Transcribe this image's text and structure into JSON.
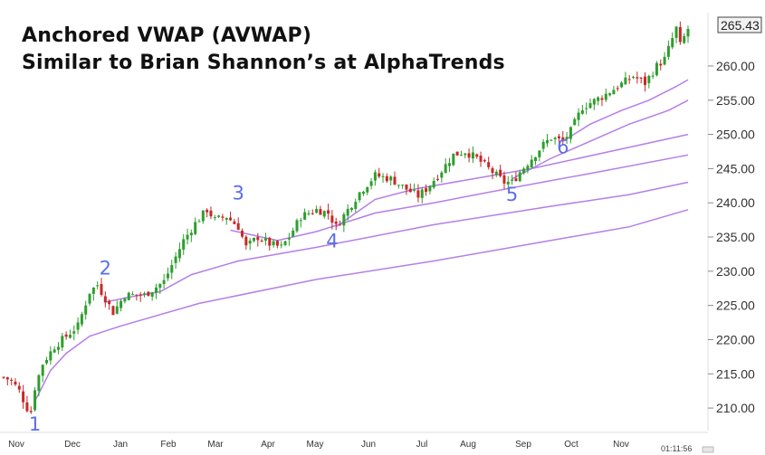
{
  "headline": {
    "line1": "Anchored VWAP (AVWAP)",
    "line2": "Similar to Brian Shannon’s at AlphaTrends"
  },
  "timestamp": "01:11:56",
  "chart_data": {
    "type": "candlestick",
    "title": "Anchored VWAP (AVWAP)",
    "subtitle": "Similar to Brian Shannon’s at AlphaTrends",
    "x_tick_labels": [
      "Nov",
      "Dec",
      "Jan",
      "Feb",
      "Mar",
      "Apr",
      "May",
      "Jun",
      "Jul",
      "Aug",
      "Sep",
      "Oct",
      "Nov"
    ],
    "ylim": [
      207.5,
      267
    ],
    "y_ticks": [
      210,
      215,
      220,
      225,
      230,
      235,
      240,
      245,
      250,
      255,
      260
    ],
    "y_tick_labels": [
      "210.00",
      "215.00",
      "220.00",
      "225.00",
      "230.00",
      "235.00",
      "240.00",
      "245.00",
      "250.00",
      "255.00",
      "260.00"
    ],
    "last_price_label": "265.43",
    "last_price": 265.43,
    "price_path": [
      {
        "t": 0,
        "v": 214.5
      },
      {
        "t": 2,
        "v": 214
      },
      {
        "t": 4,
        "v": 212.5
      },
      {
        "t": 6,
        "v": 210
      },
      {
        "t": 7,
        "v": 209.5
      },
      {
        "t": 8,
        "v": 213
      },
      {
        "t": 10,
        "v": 216.5
      },
      {
        "t": 13,
        "v": 219
      },
      {
        "t": 16,
        "v": 220.5
      },
      {
        "t": 19,
        "v": 222
      },
      {
        "t": 22,
        "v": 227
      },
      {
        "t": 24,
        "v": 228
      },
      {
        "t": 26,
        "v": 226
      },
      {
        "t": 28,
        "v": 224
      },
      {
        "t": 31,
        "v": 226.5
      },
      {
        "t": 36,
        "v": 226.5
      },
      {
        "t": 41,
        "v": 228.5
      },
      {
        "t": 46,
        "v": 234.5
      },
      {
        "t": 49,
        "v": 237
      },
      {
        "t": 52,
        "v": 239
      },
      {
        "t": 54,
        "v": 237.5
      },
      {
        "t": 57,
        "v": 238
      },
      {
        "t": 60,
        "v": 236.5
      },
      {
        "t": 62,
        "v": 233.5
      },
      {
        "t": 65,
        "v": 235
      },
      {
        "t": 68,
        "v": 234
      },
      {
        "t": 71,
        "v": 233.5
      },
      {
        "t": 73,
        "v": 235
      },
      {
        "t": 76,
        "v": 238
      },
      {
        "t": 80,
        "v": 239
      },
      {
        "t": 83,
        "v": 238.5
      },
      {
        "t": 85,
        "v": 236.5
      },
      {
        "t": 88,
        "v": 239
      },
      {
        "t": 91,
        "v": 241.5
      },
      {
        "t": 95,
        "v": 244
      },
      {
        "t": 99,
        "v": 243.5
      },
      {
        "t": 103,
        "v": 242
      },
      {
        "t": 106,
        "v": 241
      },
      {
        "t": 108,
        "v": 242
      },
      {
        "t": 111,
        "v": 244
      },
      {
        "t": 115,
        "v": 247
      },
      {
        "t": 118,
        "v": 247.5
      },
      {
        "t": 121,
        "v": 246.5
      },
      {
        "t": 124,
        "v": 245
      },
      {
        "t": 126,
        "v": 244
      },
      {
        "t": 128,
        "v": 243
      },
      {
        "t": 130,
        "v": 243
      },
      {
        "t": 132,
        "v": 244.5
      },
      {
        "t": 135,
        "v": 246.5
      },
      {
        "t": 138,
        "v": 248.5
      },
      {
        "t": 140,
        "v": 249.5
      },
      {
        "t": 143,
        "v": 249
      },
      {
        "t": 145,
        "v": 250.5
      },
      {
        "t": 148,
        "v": 254
      },
      {
        "t": 153,
        "v": 255.5
      },
      {
        "t": 157,
        "v": 257
      },
      {
        "t": 161,
        "v": 258.5
      },
      {
        "t": 164,
        "v": 257.5
      },
      {
        "t": 167,
        "v": 260
      },
      {
        "t": 169,
        "v": 261
      },
      {
        "t": 171,
        "v": 264
      },
      {
        "t": 172,
        "v": 265.5
      },
      {
        "t": 173,
        "v": 263
      },
      {
        "t": 175,
        "v": 265.43
      }
    ],
    "vwap_lines": [
      {
        "anchor": "1",
        "points": [
          {
            "t": 8,
            "v": 211
          },
          {
            "t": 12,
            "v": 215.5
          },
          {
            "t": 16,
            "v": 218
          },
          {
            "t": 22,
            "v": 220.5
          },
          {
            "t": 30,
            "v": 222
          },
          {
            "t": 50,
            "v": 225.3
          },
          {
            "t": 80,
            "v": 228.8
          },
          {
            "t": 110,
            "v": 231.5
          },
          {
            "t": 140,
            "v": 234.5
          },
          {
            "t": 160,
            "v": 236.5
          },
          {
            "t": 175,
            "v": 239
          }
        ]
      },
      {
        "anchor": "2",
        "points": [
          {
            "t": 26,
            "v": 225.5
          },
          {
            "t": 32,
            "v": 226.2
          },
          {
            "t": 40,
            "v": 227
          },
          {
            "t": 48,
            "v": 229.5
          },
          {
            "t": 60,
            "v": 231.5
          },
          {
            "t": 80,
            "v": 233.5
          },
          {
            "t": 110,
            "v": 236.8
          },
          {
            "t": 140,
            "v": 239.5
          },
          {
            "t": 160,
            "v": 241.2
          },
          {
            "t": 175,
            "v": 243
          }
        ]
      },
      {
        "anchor": "3",
        "points": [
          {
            "t": 58,
            "v": 236
          },
          {
            "t": 70,
            "v": 234.5
          },
          {
            "t": 80,
            "v": 235.8
          },
          {
            "t": 95,
            "v": 238.5
          },
          {
            "t": 110,
            "v": 240
          },
          {
            "t": 130,
            "v": 242.2
          },
          {
            "t": 150,
            "v": 244.3
          },
          {
            "t": 175,
            "v": 247
          }
        ]
      },
      {
        "anchor": "4",
        "points": [
          {
            "t": 85,
            "v": 236.5
          },
          {
            "t": 95,
            "v": 240.5
          },
          {
            "t": 105,
            "v": 242
          },
          {
            "t": 120,
            "v": 243.5
          },
          {
            "t": 135,
            "v": 245
          },
          {
            "t": 155,
            "v": 247.5
          },
          {
            "t": 175,
            "v": 250
          }
        ]
      },
      {
        "anchor": "5",
        "points": [
          {
            "t": 130,
            "v": 243.5
          },
          {
            "t": 140,
            "v": 246.5
          },
          {
            "t": 150,
            "v": 249
          },
          {
            "t": 160,
            "v": 251.5
          },
          {
            "t": 170,
            "v": 253.5
          },
          {
            "t": 175,
            "v": 255
          }
        ]
      },
      {
        "anchor": "6",
        "points": [
          {
            "t": 143,
            "v": 249
          },
          {
            "t": 150,
            "v": 251.5
          },
          {
            "t": 158,
            "v": 253.5
          },
          {
            "t": 165,
            "v": 255
          },
          {
            "t": 172,
            "v": 257
          },
          {
            "t": 175,
            "v": 258
          }
        ]
      }
    ],
    "anchor_labels": [
      {
        "label": "1",
        "t": 8,
        "v": 206.7
      },
      {
        "label": "2",
        "t": 26,
        "v": 229.5
      },
      {
        "label": "3",
        "t": 60,
        "v": 240.5
      },
      {
        "label": "4",
        "t": 84,
        "v": 233.5
      },
      {
        "label": "5",
        "t": 130,
        "v": 240.3
      },
      {
        "label": "6",
        "t": 143,
        "v": 247.2
      }
    ],
    "colors": {
      "up": "#2e9e2e",
      "down": "#c82828",
      "vwap": "#b57ee8",
      "anchor_label": "#5b6ee8"
    },
    "grid": false,
    "legend": "none"
  }
}
